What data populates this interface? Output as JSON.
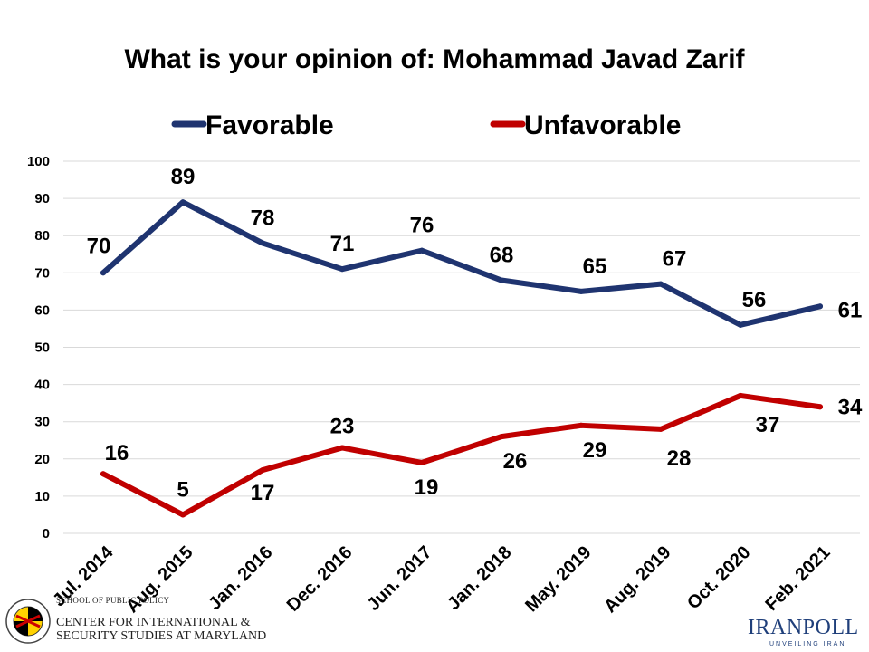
{
  "chart_data": {
    "type": "line",
    "title": "What is your opinion of: Mohammad Javad Zarif",
    "categories": [
      "Jul. 2014",
      "Aug. 2015",
      "Jan. 2016",
      "Dec. 2016",
      "Jun. 2017",
      "Jan. 2018",
      "May. 2019",
      "Aug. 2019",
      "Oct. 2020",
      "Feb. 2021"
    ],
    "series": [
      {
        "name": "Favorable",
        "color": "#1f3470",
        "values": [
          70,
          89,
          78,
          71,
          76,
          68,
          65,
          67,
          56,
          61
        ]
      },
      {
        "name": "Unfavorable",
        "color": "#c00000",
        "values": [
          16,
          5,
          17,
          23,
          19,
          26,
          29,
          28,
          37,
          34
        ]
      }
    ],
    "ylim": [
      0,
      100
    ],
    "yticks": [
      0,
      10,
      20,
      30,
      40,
      50,
      60,
      70,
      80,
      90,
      100
    ],
    "xlabel": "",
    "ylabel": "",
    "grid": true,
    "legend_position": "top"
  },
  "logos": {
    "umd_line1": "SCHOOL OF PUBLIC POLICY",
    "umd_line2": "CENTER FOR INTERNATIONAL &",
    "umd_line3": "SECURITY STUDIES AT MARYLAND",
    "iranpoll_name": "IRANPOLL",
    "iranpoll_tag": "UNVEILING IRAN"
  }
}
